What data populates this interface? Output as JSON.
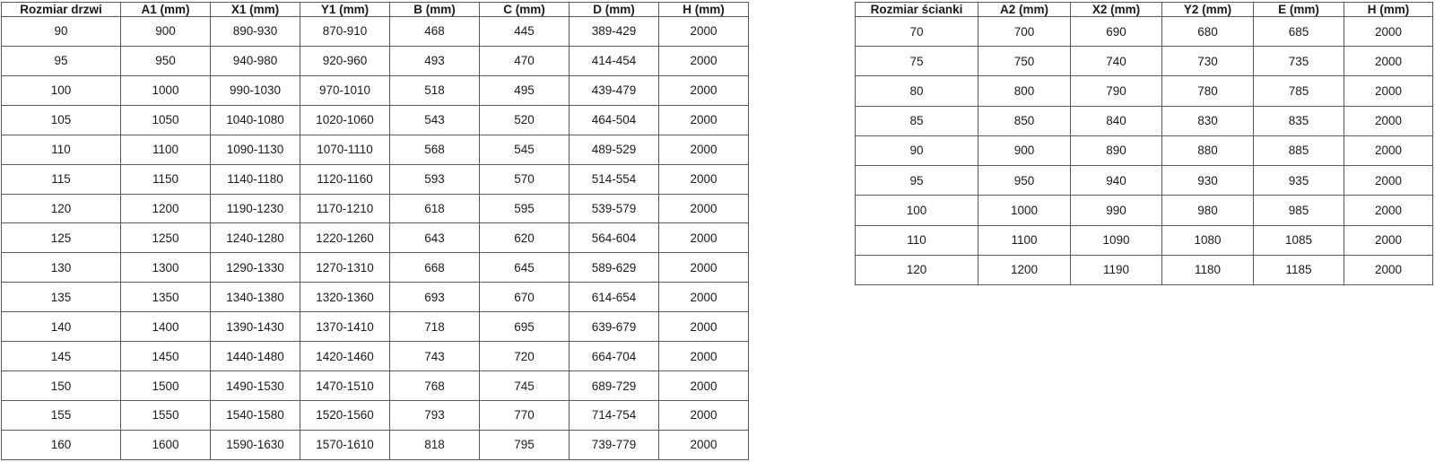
{
  "colors": {
    "border": "#595959",
    "text": "#1a1a1a",
    "background": "#ffffff"
  },
  "chart_data": [
    {
      "type": "table",
      "name": "door-size-table",
      "headers": [
        "Rozmiar drzwi",
        "A1 (mm)",
        "X1 (mm)",
        "Y1 (mm)",
        "B (mm)",
        "C (mm)",
        "D (mm)",
        "H (mm)"
      ],
      "rows": [
        [
          "90",
          "900",
          "890-930",
          "870-910",
          "468",
          "445",
          "389-429",
          "2000"
        ],
        [
          "95",
          "950",
          "940-980",
          "920-960",
          "493",
          "470",
          "414-454",
          "2000"
        ],
        [
          "100",
          "1000",
          "990-1030",
          "970-1010",
          "518",
          "495",
          "439-479",
          "2000"
        ],
        [
          "105",
          "1050",
          "1040-1080",
          "1020-1060",
          "543",
          "520",
          "464-504",
          "2000"
        ],
        [
          "110",
          "1100",
          "1090-1130",
          "1070-1110",
          "568",
          "545",
          "489-529",
          "2000"
        ],
        [
          "115",
          "1150",
          "1140-1180",
          "1120-1160",
          "593",
          "570",
          "514-554",
          "2000"
        ],
        [
          "120",
          "1200",
          "1190-1230",
          "1170-1210",
          "618",
          "595",
          "539-579",
          "2000"
        ],
        [
          "125",
          "1250",
          "1240-1280",
          "1220-1260",
          "643",
          "620",
          "564-604",
          "2000"
        ],
        [
          "130",
          "1300",
          "1290-1330",
          "1270-1310",
          "668",
          "645",
          "589-629",
          "2000"
        ],
        [
          "135",
          "1350",
          "1340-1380",
          "1320-1360",
          "693",
          "670",
          "614-654",
          "2000"
        ],
        [
          "140",
          "1400",
          "1390-1430",
          "1370-1410",
          "718",
          "695",
          "639-679",
          "2000"
        ],
        [
          "145",
          "1450",
          "1440-1480",
          "1420-1460",
          "743",
          "720",
          "664-704",
          "2000"
        ],
        [
          "150",
          "1500",
          "1490-1530",
          "1470-1510",
          "768",
          "745",
          "689-729",
          "2000"
        ],
        [
          "155",
          "1550",
          "1540-1580",
          "1520-1560",
          "793",
          "770",
          "714-754",
          "2000"
        ],
        [
          "160",
          "1600",
          "1590-1630",
          "1570-1610",
          "818",
          "795",
          "739-779",
          "2000"
        ]
      ]
    },
    {
      "type": "table",
      "name": "wall-size-table",
      "headers": [
        "Rozmiar ścianki",
        "A2 (mm)",
        "X2 (mm)",
        "Y2 (mm)",
        "E (mm)",
        "H (mm)"
      ],
      "rows": [
        [
          "70",
          "700",
          "690",
          "680",
          "685",
          "2000"
        ],
        [
          "75",
          "750",
          "740",
          "730",
          "735",
          "2000"
        ],
        [
          "80",
          "800",
          "790",
          "780",
          "785",
          "2000"
        ],
        [
          "85",
          "850",
          "840",
          "830",
          "835",
          "2000"
        ],
        [
          "90",
          "900",
          "890",
          "880",
          "885",
          "2000"
        ],
        [
          "95",
          "950",
          "940",
          "930",
          "935",
          "2000"
        ],
        [
          "100",
          "1000",
          "990",
          "980",
          "985",
          "2000"
        ],
        [
          "110",
          "1100",
          "1090",
          "1080",
          "1085",
          "2000"
        ],
        [
          "120",
          "1200",
          "1190",
          "1180",
          "1185",
          "2000"
        ]
      ]
    }
  ]
}
